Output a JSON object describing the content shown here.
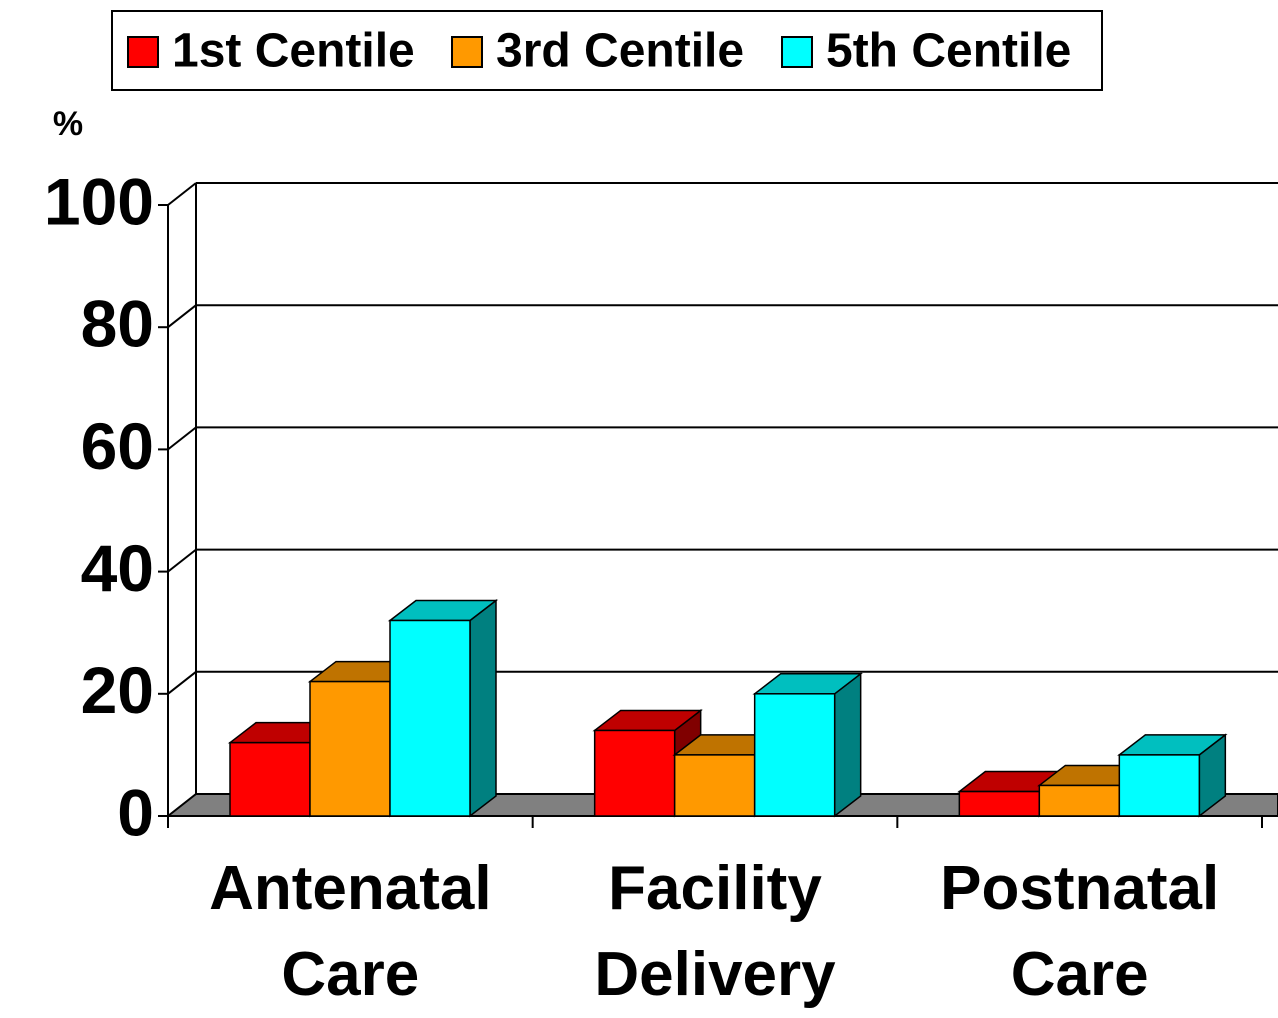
{
  "chart_data": {
    "type": "bar3d",
    "y_label": "%",
    "categories": [
      "Antenatal Care",
      "Facility Delivery",
      "Postnatal Care"
    ],
    "series": [
      {
        "name": "1st Centile",
        "color": "#ff0000",
        "values": [
          12,
          14,
          4
        ]
      },
      {
        "name": "3rd Centile",
        "color": "#ff9900",
        "values": [
          22,
          10,
          5
        ]
      },
      {
        "name": "5th Centile",
        "color": "#00ffff",
        "values": [
          32,
          20,
          10
        ]
      }
    ],
    "ylim": [
      0,
      100
    ],
    "yticks": [
      0,
      20,
      40,
      60,
      80,
      100
    ],
    "grid": true,
    "legend": "top"
  }
}
